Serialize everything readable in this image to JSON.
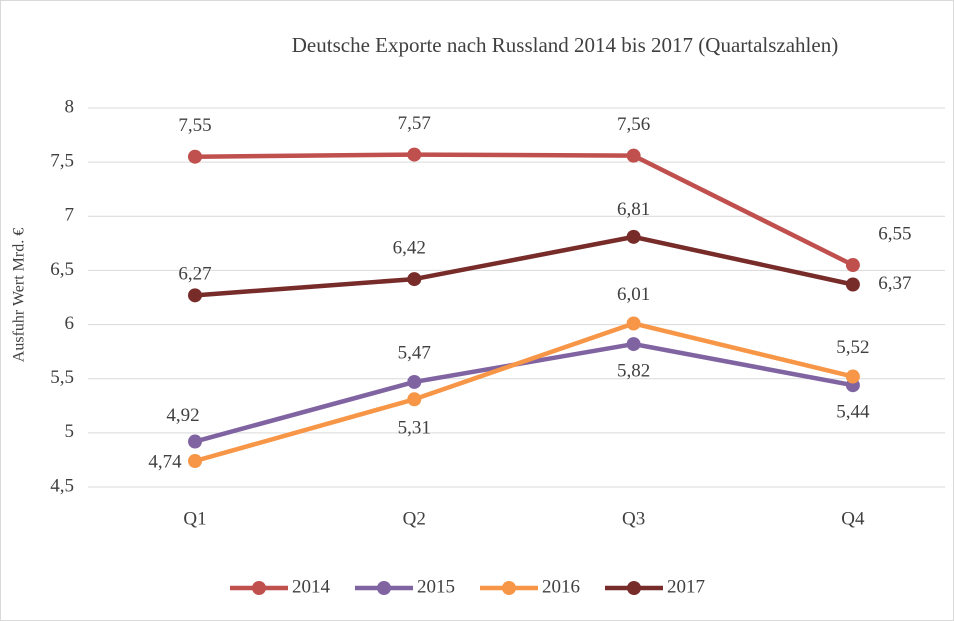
{
  "chart_data": {
    "type": "line",
    "title": "Deutsche Exporte nach Russland 2014 bis 2017 (Quartalszahlen)",
    "y_label": "Ausfuhr Wert Mrd. €",
    "categories": [
      "Q1",
      "Q2",
      "Q3",
      "Q4"
    ],
    "series": [
      {
        "name": "2014",
        "color": "#c0504d",
        "values": [
          7.55,
          7.57,
          7.56,
          6.55
        ],
        "value_labels": [
          "7,55",
          "7,57",
          "7,56",
          "6,55"
        ]
      },
      {
        "name": "2015",
        "color": "#8064a2",
        "values": [
          4.92,
          5.47,
          5.82,
          5.44
        ],
        "value_labels": [
          "4,92",
          "5,47",
          "5,82",
          "5,44"
        ]
      },
      {
        "name": "2016",
        "color": "#f79646",
        "values": [
          4.74,
          5.31,
          6.01,
          5.52
        ],
        "value_labels": [
          "4,74",
          "5,31",
          "6,01",
          "5,52"
        ]
      },
      {
        "name": "2017",
        "color": "#772c2a",
        "values": [
          6.27,
          6.42,
          6.81,
          6.37
        ],
        "value_labels": [
          "6,27",
          "6,42",
          "6,81",
          "6,37"
        ]
      }
    ],
    "ylim": [
      4.5,
      8
    ],
    "yticks": [
      {
        "value": 4.5,
        "label": "4,5"
      },
      5,
      {
        "value": 5.5,
        "label": "5,5"
      },
      6,
      {
        "value": 6.5,
        "label": "6,5"
      },
      7,
      {
        "value": 7.5,
        "label": "7,5"
      },
      8
    ],
    "grid": true,
    "legend": "bottom"
  }
}
